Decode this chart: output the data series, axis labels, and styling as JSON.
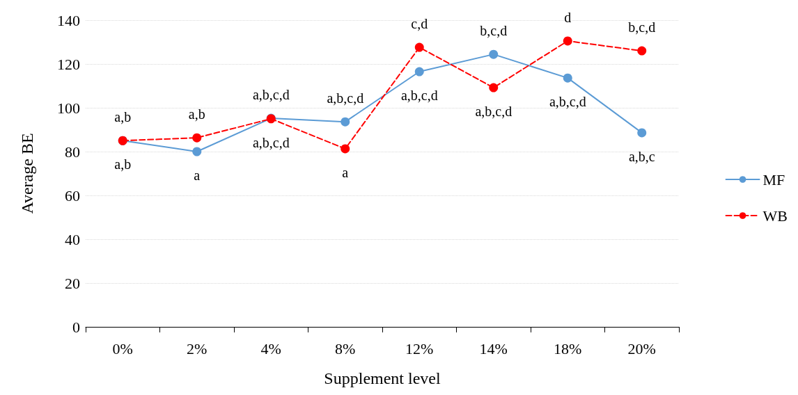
{
  "chart_data": {
    "type": "line",
    "xlabel": "Supplement level",
    "ylabel": "Average BE",
    "categories": [
      "0%",
      "2%",
      "4%",
      "8%",
      "12%",
      "14%",
      "18%",
      "20%"
    ],
    "series": [
      {
        "name": "MF",
        "color": "#5b9bd5",
        "line_style": "solid",
        "values": [
          85,
          80,
          95.2,
          93.6,
          116.5,
          124.4,
          113.6,
          88.6
        ]
      },
      {
        "name": "WB",
        "color": "#ff0000",
        "line_style": "dashed",
        "values": [
          85,
          86.3,
          95,
          81.3,
          127.6,
          109.2,
          130.5,
          126
        ]
      }
    ],
    "ylim": [
      0,
      140
    ],
    "yticks": [
      0,
      20,
      40,
      60,
      80,
      100,
      120,
      140
    ],
    "grid": "y",
    "legend": "right",
    "marker": "circle",
    "annotations": [
      {
        "text": "a,b",
        "x": "0%",
        "y": 85
      },
      {
        "text": "a,b",
        "x": "0%",
        "y": 85
      },
      {
        "text": "a,b",
        "x": "2%",
        "y": 86.3
      },
      {
        "text": "a",
        "x": "2%",
        "y": 80
      },
      {
        "text": "a,b,c,d",
        "x": "4%",
        "y": 95.2
      },
      {
        "text": "a,b,c,d",
        "x": "4%",
        "y": 95
      },
      {
        "text": "a,b,c,d",
        "x": "8%",
        "y": 93.6
      },
      {
        "text": "a",
        "x": "8%",
        "y": 81.3
      },
      {
        "text": "c,d",
        "x": "12%",
        "y": 127.6
      },
      {
        "text": "a,b,c,d",
        "x": "12%",
        "y": 116.5
      },
      {
        "text": "b,c,d",
        "x": "14%",
        "y": 124.4
      },
      {
        "text": "a,b,c,d",
        "x": "14%",
        "y": 109.2
      },
      {
        "text": "d",
        "x": "18%",
        "y": 130.5
      },
      {
        "text": "a,b,c,d",
        "x": "18%",
        "y": 113.6
      },
      {
        "text": "b,c,d",
        "x": "20%",
        "y": 126
      },
      {
        "text": "a,b,c",
        "x": "20%",
        "y": 88.6
      }
    ]
  }
}
